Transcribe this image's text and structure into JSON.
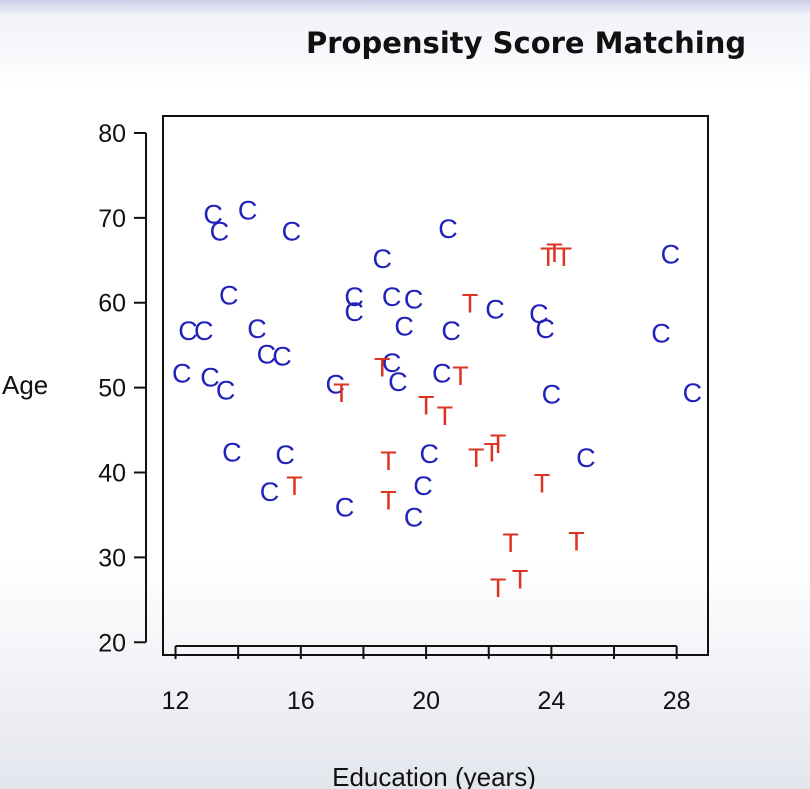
{
  "title": "Propensity Score Matching",
  "chart_data": {
    "type": "scatter",
    "title": "Propensity Score Matching",
    "xlabel": "Education (years)",
    "ylabel": "Age",
    "xlim": [
      11.6,
      29.0
    ],
    "ylim": [
      18.5,
      82.0
    ],
    "x_ticks": [
      12,
      14,
      16,
      18,
      20,
      22,
      24,
      26,
      28
    ],
    "x_tick_labels": [
      "12",
      "16",
      "20",
      "24",
      "28"
    ],
    "y_ticks": [
      20,
      30,
      40,
      50,
      60,
      70,
      80
    ],
    "grid": false,
    "series": [
      {
        "marker": "C",
        "color": "#2222bb",
        "points": [
          [
            13.2,
            70.5
          ],
          [
            13.4,
            68.5
          ],
          [
            14.3,
            71.0
          ],
          [
            15.7,
            68.5
          ],
          [
            13.7,
            61.0
          ],
          [
            12.4,
            56.8
          ],
          [
            12.9,
            56.8
          ],
          [
            14.6,
            57.0
          ],
          [
            14.9,
            54.0
          ],
          [
            15.4,
            53.8
          ],
          [
            12.2,
            51.8
          ],
          [
            13.1,
            51.3
          ],
          [
            13.6,
            49.8
          ],
          [
            13.8,
            42.5
          ],
          [
            15.5,
            42.2
          ],
          [
            15.0,
            37.8
          ],
          [
            17.1,
            50.5
          ],
          [
            17.4,
            36.0
          ],
          [
            17.7,
            60.8
          ],
          [
            17.7,
            59.0
          ],
          [
            18.6,
            65.3
          ],
          [
            18.9,
            60.8
          ],
          [
            19.6,
            60.5
          ],
          [
            19.3,
            57.3
          ],
          [
            18.9,
            53.0
          ],
          [
            19.1,
            50.8
          ],
          [
            19.6,
            34.8
          ],
          [
            19.9,
            38.5
          ],
          [
            20.1,
            42.3
          ],
          [
            20.5,
            51.8
          ],
          [
            20.7,
            68.8
          ],
          [
            20.8,
            56.8
          ],
          [
            22.2,
            59.3
          ],
          [
            23.6,
            58.8
          ],
          [
            23.8,
            57.0
          ],
          [
            24.0,
            49.3
          ],
          [
            25.1,
            41.8
          ],
          [
            27.5,
            56.5
          ],
          [
            27.8,
            65.8
          ],
          [
            28.5,
            49.5
          ]
        ]
      },
      {
        "marker": "T",
        "color": "#dd3322",
        "points": [
          [
            15.8,
            38.5
          ],
          [
            17.3,
            49.5
          ],
          [
            18.6,
            52.5
          ],
          [
            18.8,
            41.5
          ],
          [
            18.8,
            36.8
          ],
          [
            20.0,
            48.0
          ],
          [
            20.6,
            46.8
          ],
          [
            21.1,
            51.5
          ],
          [
            21.4,
            60.0
          ],
          [
            21.6,
            41.8
          ],
          [
            22.1,
            42.5
          ],
          [
            22.3,
            43.5
          ],
          [
            22.3,
            26.5
          ],
          [
            22.7,
            31.8
          ],
          [
            23.0,
            27.5
          ],
          [
            23.7,
            38.8
          ],
          [
            23.9,
            65.5
          ],
          [
            24.1,
            66.0
          ],
          [
            24.4,
            65.5
          ],
          [
            24.8,
            32.0
          ]
        ]
      }
    ]
  }
}
